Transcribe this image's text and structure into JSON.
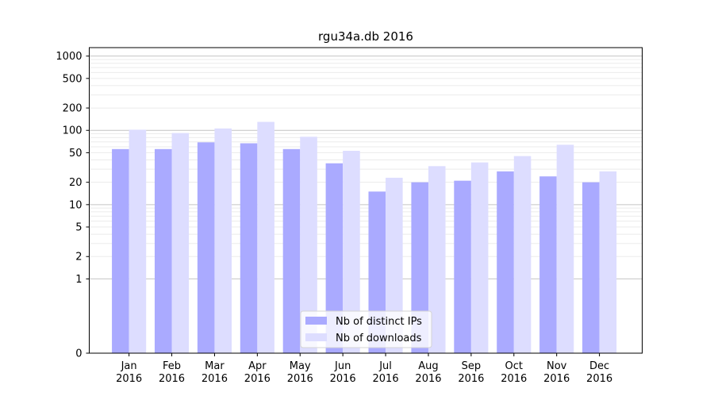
{
  "chart_data": {
    "type": "bar",
    "title": "rgu34a.db 2016",
    "xlabel": "",
    "ylabel": "",
    "yscale": "symlog",
    "ylim": [
      0,
      1300
    ],
    "yticks": [
      0,
      1,
      2,
      5,
      10,
      20,
      50,
      100,
      200,
      500,
      1000
    ],
    "ytick_labels": [
      "0",
      "1",
      "2",
      "5",
      "10",
      "20",
      "50",
      "100",
      "200",
      "500",
      "1000"
    ],
    "grid": true,
    "legend_position": "bottom-center",
    "categories": [
      [
        "Jan",
        "2016"
      ],
      [
        "Feb",
        "2016"
      ],
      [
        "Mar",
        "2016"
      ],
      [
        "Apr",
        "2016"
      ],
      [
        "May",
        "2016"
      ],
      [
        "Jun",
        "2016"
      ],
      [
        "Jul",
        "2016"
      ],
      [
        "Aug",
        "2016"
      ],
      [
        "Sep",
        "2016"
      ],
      [
        "Oct",
        "2016"
      ],
      [
        "Nov",
        "2016"
      ],
      [
        "Dec",
        "2016"
      ]
    ],
    "series": [
      {
        "name": "Nb of distinct IPs",
        "color": "#aaaaff",
        "values": [
          56,
          56,
          69,
          67,
          56,
          36,
          15,
          20,
          21,
          28,
          24,
          20
        ]
      },
      {
        "name": "Nb of downloads",
        "color": "#ddddff",
        "values": [
          102,
          92,
          106,
          130,
          82,
          53,
          23,
          33,
          37,
          45,
          64,
          28
        ]
      }
    ]
  }
}
